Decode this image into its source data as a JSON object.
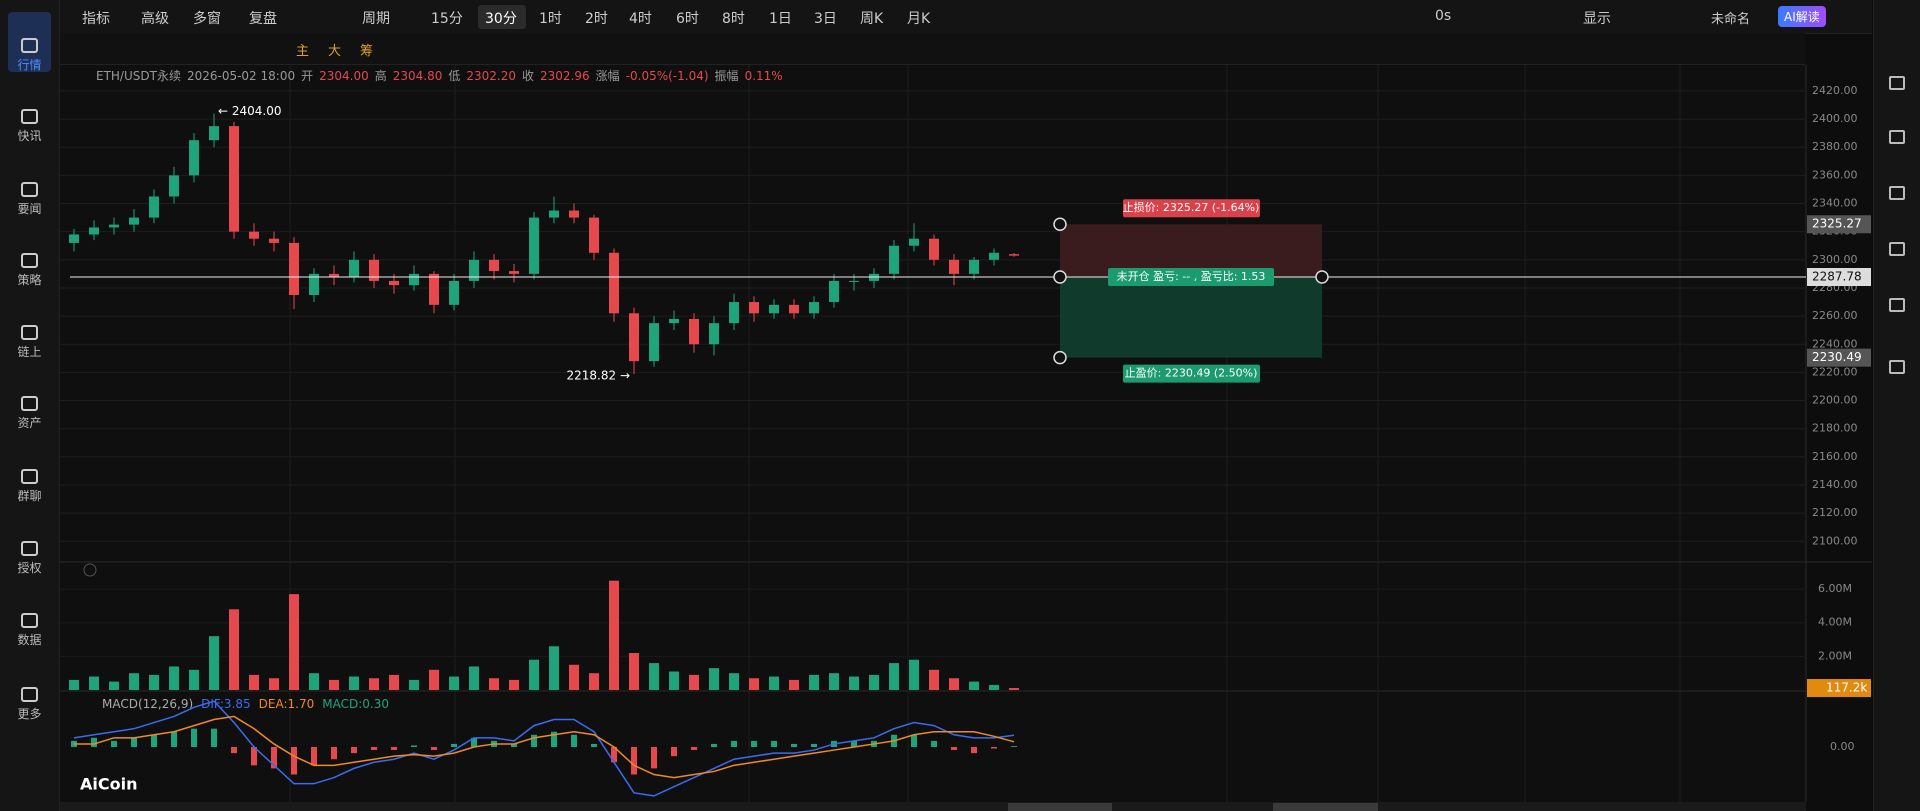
{
  "toolbar": {
    "items": [
      "指标",
      "高级",
      "多窗",
      "复盘",
      "周期"
    ],
    "intervals": [
      "15分",
      "30分",
      "1时",
      "2时",
      "4时",
      "6时",
      "8时",
      "1日",
      "3日",
      "周K",
      "月K"
    ],
    "active_interval": "30分",
    "timer": "0s",
    "display": "显示",
    "layout_name": "未命名",
    "ai": "AI解读",
    "overlays": [
      "主",
      "大",
      "筹"
    ]
  },
  "sidebar": [
    "行情",
    "快讯",
    "要闻",
    "策略",
    "链上",
    "资产",
    "群聊",
    "授权",
    "数据",
    "更多"
  ],
  "logo": "AiCoin",
  "chart_data": {
    "type": "candlestick",
    "header": [
      "ETH/USDT永续",
      "2026-05-02 18:00",
      "开",
      "2304.00",
      "高",
      "2304.80",
      "低",
      "2302.20",
      "收",
      "2302.96",
      "涨幅",
      "-0.05%(-1.04)",
      "振幅",
      "0.11%"
    ],
    "open": [
      2312,
      2318,
      2323,
      2325,
      2330,
      2345,
      2360,
      2385,
      2395,
      2320,
      2315,
      2312,
      2275,
      2290,
      2288,
      2300,
      2285,
      2282,
      2290,
      2268,
      2285,
      2300,
      2292,
      2290,
      2330,
      2335,
      2330,
      2305,
      2262,
      2228,
      2255,
      2258,
      2240,
      2255,
      2270,
      2262,
      2268,
      2262,
      2270,
      2285,
      2285,
      2290,
      2310,
      2315,
      2300,
      2290,
      2300,
      2304
    ],
    "high": [
      2322,
      2328,
      2330,
      2336,
      2350,
      2366,
      2390,
      2404,
      2398,
      2326,
      2320,
      2316,
      2294,
      2296,
      2306,
      2304,
      2290,
      2296,
      2292,
      2290,
      2306,
      2304,
      2297,
      2334,
      2345,
      2340,
      2332,
      2308,
      2266,
      2260,
      2264,
      2262,
      2260,
      2276,
      2274,
      2272,
      2272,
      2274,
      2290,
      2290,
      2294,
      2314,
      2326,
      2318,
      2304,
      2302,
      2308,
      2304.8
    ],
    "low": [
      2306,
      2314,
      2318,
      2320,
      2326,
      2340,
      2355,
      2380,
      2315,
      2310,
      2306,
      2265,
      2270,
      2282,
      2284,
      2280,
      2276,
      2278,
      2262,
      2264,
      2280,
      2286,
      2284,
      2286,
      2326,
      2326,
      2300,
      2256,
      2218.82,
      2224,
      2250,
      2234,
      2232,
      2250,
      2256,
      2258,
      2258,
      2258,
      2266,
      2278,
      2280,
      2286,
      2306,
      2296,
      2282,
      2286,
      2296,
      2302.2
    ],
    "close": [
      2318,
      2323,
      2325,
      2330,
      2345,
      2360,
      2385,
      2395,
      2320,
      2315,
      2312,
      2275,
      2290,
      2288,
      2300,
      2285,
      2282,
      2290,
      2268,
      2285,
      2300,
      2292,
      2290,
      2330,
      2335,
      2330,
      2305,
      2262,
      2228,
      2255,
      2258,
      2240,
      2255,
      2270,
      2262,
      2268,
      2262,
      2270,
      2285,
      2285,
      2290,
      2310,
      2315,
      2300,
      2290,
      2300,
      2305,
      2302.96
    ],
    "up_color": "#1fa37a",
    "down_color": "#e5484d",
    "ylim": [
      2086,
      2437
    ],
    "yticks": [
      {
        "value": 2100,
        "label": "2100.00"
      },
      {
        "value": 2120,
        "label": "2120.00"
      },
      {
        "value": 2140,
        "label": "2140.00"
      },
      {
        "value": 2160,
        "label": "2160.00"
      },
      {
        "value": 2180,
        "label": "2180.00"
      },
      {
        "value": 2200,
        "label": "2200.00"
      },
      {
        "value": 2220,
        "label": "2220.00"
      },
      {
        "value": 2240,
        "label": "2240.00"
      },
      {
        "value": 2260,
        "label": "2260.00"
      },
      {
        "value": 2280,
        "label": "2280.00"
      },
      {
        "value": 2300,
        "label": "2300.00"
      },
      {
        "value": 2320,
        "label": "2320.00"
      },
      {
        "value": 2340,
        "label": "2340.00"
      },
      {
        "value": 2360,
        "label": "2360.00"
      },
      {
        "value": 2380,
        "label": "2380.00"
      },
      {
        "value": 2400,
        "label": "2400.00"
      },
      {
        "value": 2420,
        "label": "2420.00"
      }
    ],
    "grid": true,
    "high_label": "← 2404.00",
    "low_label": "2218.82 →",
    "position": {
      "entry": 2287.78,
      "stop": 2325.27,
      "target": 2230.49,
      "status": "未开仓  盈亏: -- , 盈亏比: 1.53",
      "stop_label": "止损价: 2325.27 (-1.64%)",
      "target_label": "止盈价: 2230.49 (2.50%)"
    },
    "volume": {
      "values": [
        0.6,
        0.8,
        0.5,
        1.0,
        0.9,
        1.4,
        1.2,
        3.2,
        4.8,
        0.9,
        0.7,
        5.7,
        1.0,
        0.6,
        0.8,
        0.7,
        0.9,
        0.6,
        1.2,
        0.8,
        1.4,
        0.7,
        0.6,
        1.8,
        2.6,
        1.5,
        1.0,
        6.5,
        2.2,
        1.6,
        1.1,
        0.9,
        1.3,
        1.0,
        0.7,
        0.8,
        0.6,
        0.9,
        1.0,
        0.8,
        0.9,
        1.6,
        1.8,
        1.2,
        0.7,
        0.5,
        0.3,
        0.1172
      ],
      "ylim": [
        0,
        7.55
      ],
      "yticks": [
        {
          "value": 2,
          "label": "2.00M"
        },
        {
          "value": 4,
          "label": "4.00M"
        },
        {
          "value": 6,
          "label": "6.00M"
        }
      ],
      "current": {
        "value": 0.1172,
        "label": "117.2k"
      }
    },
    "macd": {
      "title": "MACD(12,26,9)",
      "dif_label": "DIF:3.85",
      "dea_label": "DEA:1.70",
      "macd_label": "MACD:0.30",
      "hist": [
        2,
        3,
        2,
        3,
        4,
        5,
        6,
        6,
        -2,
        -6,
        -7,
        -9,
        -6,
        -4,
        -2,
        -1,
        -1,
        0.5,
        -1,
        1,
        3,
        2,
        1,
        4,
        5,
        4,
        1,
        -5,
        -9,
        -7,
        -3,
        -1,
        1,
        2,
        2,
        2,
        1,
        1,
        2,
        2,
        2,
        4,
        4,
        2,
        -1,
        -2,
        -0.5,
        0.3
      ],
      "dif": [
        3,
        4,
        5,
        6,
        8,
        10,
        13,
        15,
        8,
        0,
        -6,
        -12,
        -12,
        -10,
        -7,
        -5,
        -4,
        -2,
        -4,
        -1,
        3,
        3,
        2,
        7,
        9,
        9,
        5,
        -5,
        -15,
        -16,
        -13,
        -10,
        -7,
        -4,
        -3,
        -2,
        -2,
        -1,
        1,
        2,
        3,
        6,
        8,
        7,
        4,
        3,
        3,
        3.85
      ],
      "dea": [
        1,
        1,
        3,
        3,
        4,
        5,
        7,
        9,
        10,
        6,
        1,
        -3,
        -6,
        -6,
        -5,
        -4,
        -3,
        -2.5,
        -3,
        -2,
        0,
        1,
        1,
        3,
        4,
        5,
        4,
        0,
        -6,
        -9,
        -10,
        -9,
        -8,
        -6,
        -5,
        -4,
        -3,
        -2,
        -1,
        0,
        1,
        2,
        4,
        5,
        5,
        5,
        3.5,
        1.7
      ],
      "dif_color": "#3b6cf0",
      "dea_color": "#f08a24",
      "ylim": [
        -18,
        18
      ],
      "yticks": [
        {
          "value": 0,
          "label": "0.00"
        }
      ]
    }
  }
}
